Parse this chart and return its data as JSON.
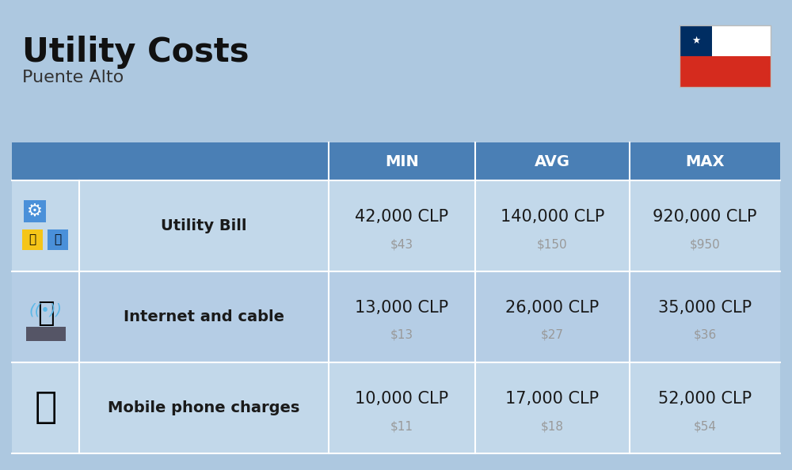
{
  "title": "Utility Costs",
  "subtitle": "Puente Alto",
  "background_color": "#adc8e0",
  "header_bg_color": "#4a7fb5",
  "header_text_color": "#ffffff",
  "row_bg_color_1": "#c2d8ea",
  "row_bg_color_2": "#b5cde5",
  "cell_text_color": "#1a1a1a",
  "usd_text_color": "#999999",
  "divider_color": "#ffffff",
  "col_headers": [
    "MIN",
    "AVG",
    "MAX"
  ],
  "rows": [
    {
      "label": "Utility Bill",
      "icon": "utility",
      "min_clp": "42,000 CLP",
      "avg_clp": "140,000 CLP",
      "max_clp": "920,000 CLP",
      "min_usd": "$43",
      "avg_usd": "$150",
      "max_usd": "$950"
    },
    {
      "label": "Internet and cable",
      "icon": "internet",
      "min_clp": "13,000 CLP",
      "avg_clp": "26,000 CLP",
      "max_clp": "35,000 CLP",
      "min_usd": "$13",
      "avg_usd": "$27",
      "max_usd": "$36"
    },
    {
      "label": "Mobile phone charges",
      "icon": "mobile",
      "min_clp": "10,000 CLP",
      "avg_clp": "17,000 CLP",
      "max_clp": "52,000 CLP",
      "min_usd": "$11",
      "avg_usd": "$18",
      "max_usd": "$54"
    }
  ],
  "title_fontsize": 30,
  "subtitle_fontsize": 16,
  "header_fontsize": 14,
  "label_fontsize": 14,
  "value_fontsize": 15,
  "usd_fontsize": 11,
  "flag_white": "#ffffff",
  "flag_red": "#d52b1e",
  "flag_blue": "#002d62",
  "fig_width": 10.0,
  "fig_height": 5.94,
  "dpi": 100
}
